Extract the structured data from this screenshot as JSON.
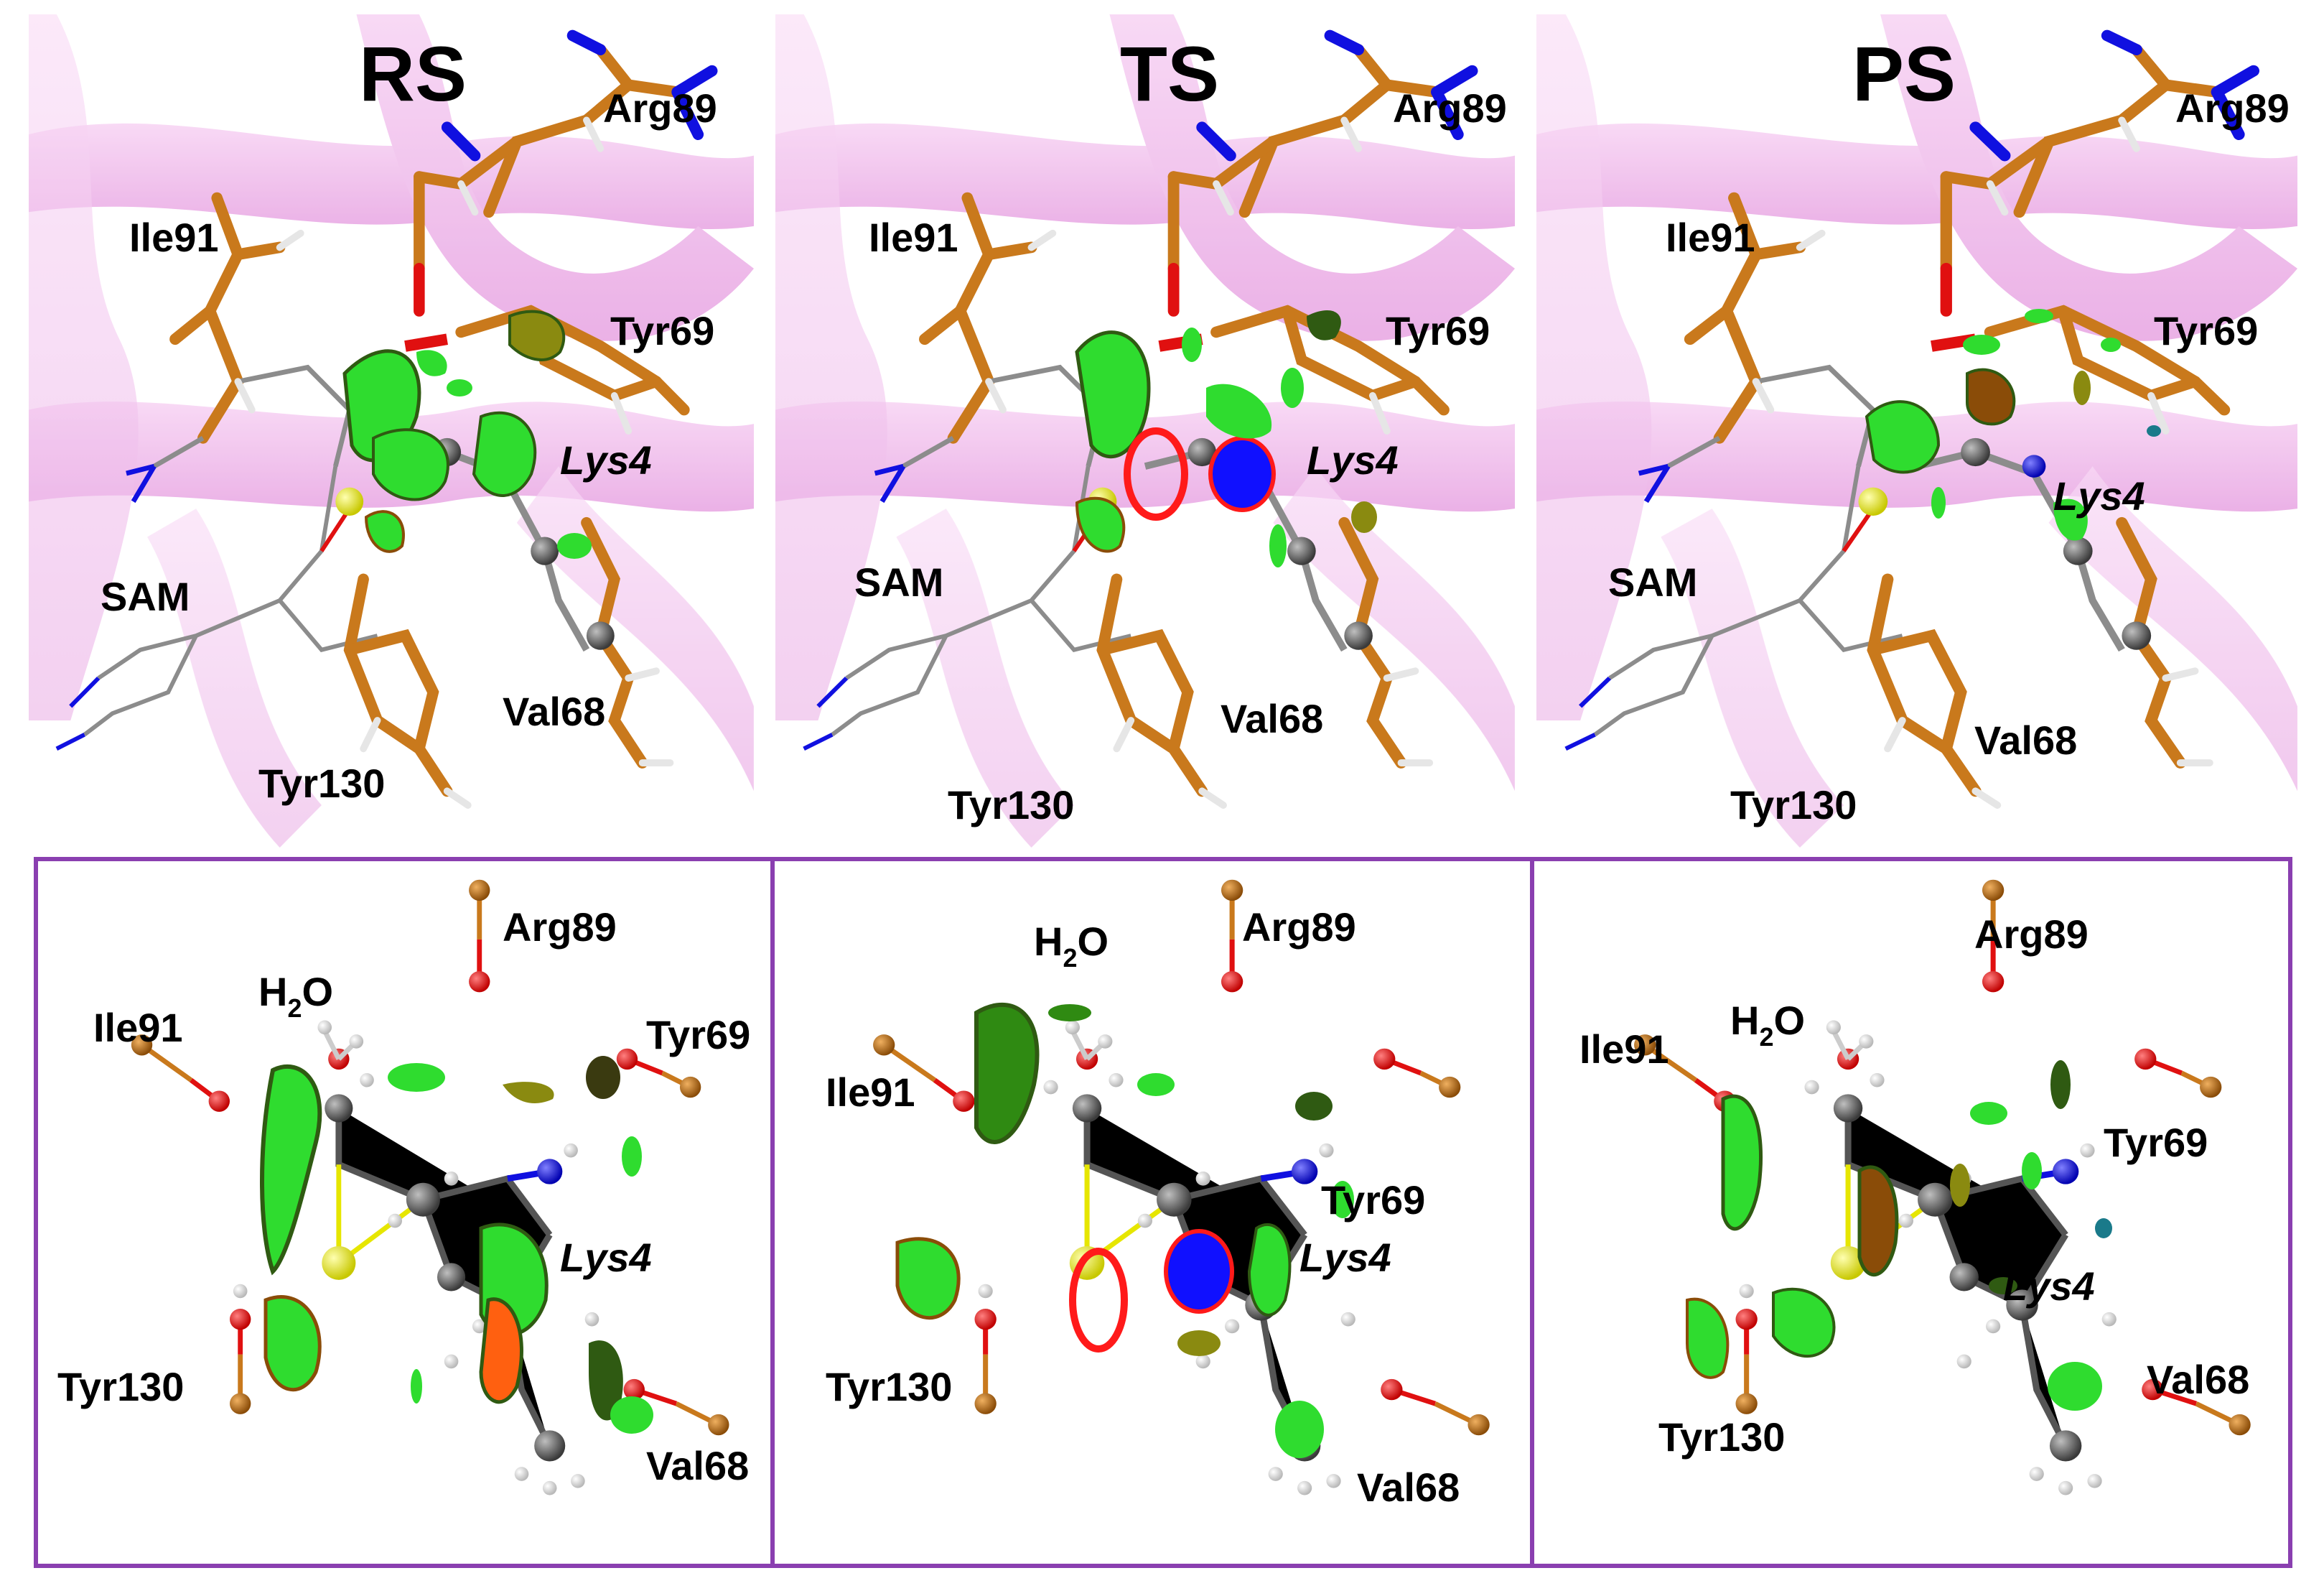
{
  "states": [
    "RS",
    "TS",
    "PS"
  ],
  "top_panels": [
    {
      "state": "RS",
      "labels": {
        "arg": "Arg89",
        "ile": "Ile91",
        "tyr69": "Tyr69",
        "lys": "Lys4",
        "sam": "SAM",
        "val": "Val68",
        "tyr130": "Tyr130"
      }
    },
    {
      "state": "TS",
      "labels": {
        "arg": "Arg89",
        "ile": "Ile91",
        "tyr69": "Tyr69",
        "lys": "Lys4",
        "sam": "SAM",
        "val": "Val68",
        "tyr130": "Tyr130"
      }
    },
    {
      "state": "PS",
      "labels": {
        "arg": "Arg89",
        "ile": "Ile91",
        "tyr69": "Tyr69",
        "lys": "Lys4",
        "sam": "SAM",
        "val": "Val68",
        "tyr130": "Tyr130"
      }
    }
  ],
  "bottom_panels": [
    {
      "labels": {
        "arg": "Arg89",
        "h2o": "H",
        "h2o_sub": "2",
        "h2o_end": "O",
        "ile": "Ile91",
        "tyr69": "Tyr69",
        "lys": "Lys4",
        "tyr130": "Tyr130",
        "val": "Val68"
      }
    },
    {
      "labels": {
        "arg": "Arg89",
        "h2o": "H",
        "h2o_sub": "2",
        "h2o_end": "O",
        "ile": "Ile91",
        "tyr69": "Tyr69",
        "lys": "Lys4",
        "tyr130": "Tyr130",
        "val": "Val68"
      }
    },
    {
      "labels": {
        "arg": "Arg89",
        "h2o": "H",
        "h2o_sub": "2",
        "h2o_end": "O",
        "ile": "Ile91",
        "tyr69": "Tyr69",
        "lys": "Lys4",
        "tyr130": "Tyr130",
        "val": "Val68"
      }
    }
  ],
  "colors": {
    "ribbon": "#f0b8ea",
    "ribbon_dark": "#e79ce0",
    "carbon_stick": "#c9791c",
    "nitrogen": "#1010e0",
    "oxygen": "#e01010",
    "hydrogen": "#f2f2f2",
    "sulfur": "#f2f20a",
    "ball_carbon": "#4a4a4a",
    "nci_green": "#2fdc2f",
    "nci_dark": "#2f5a12",
    "nci_olive": "#8a8a10",
    "nci_red": "#ff1a1a",
    "nci_blue": "#1010ff",
    "frame": "#8a3fb0"
  }
}
